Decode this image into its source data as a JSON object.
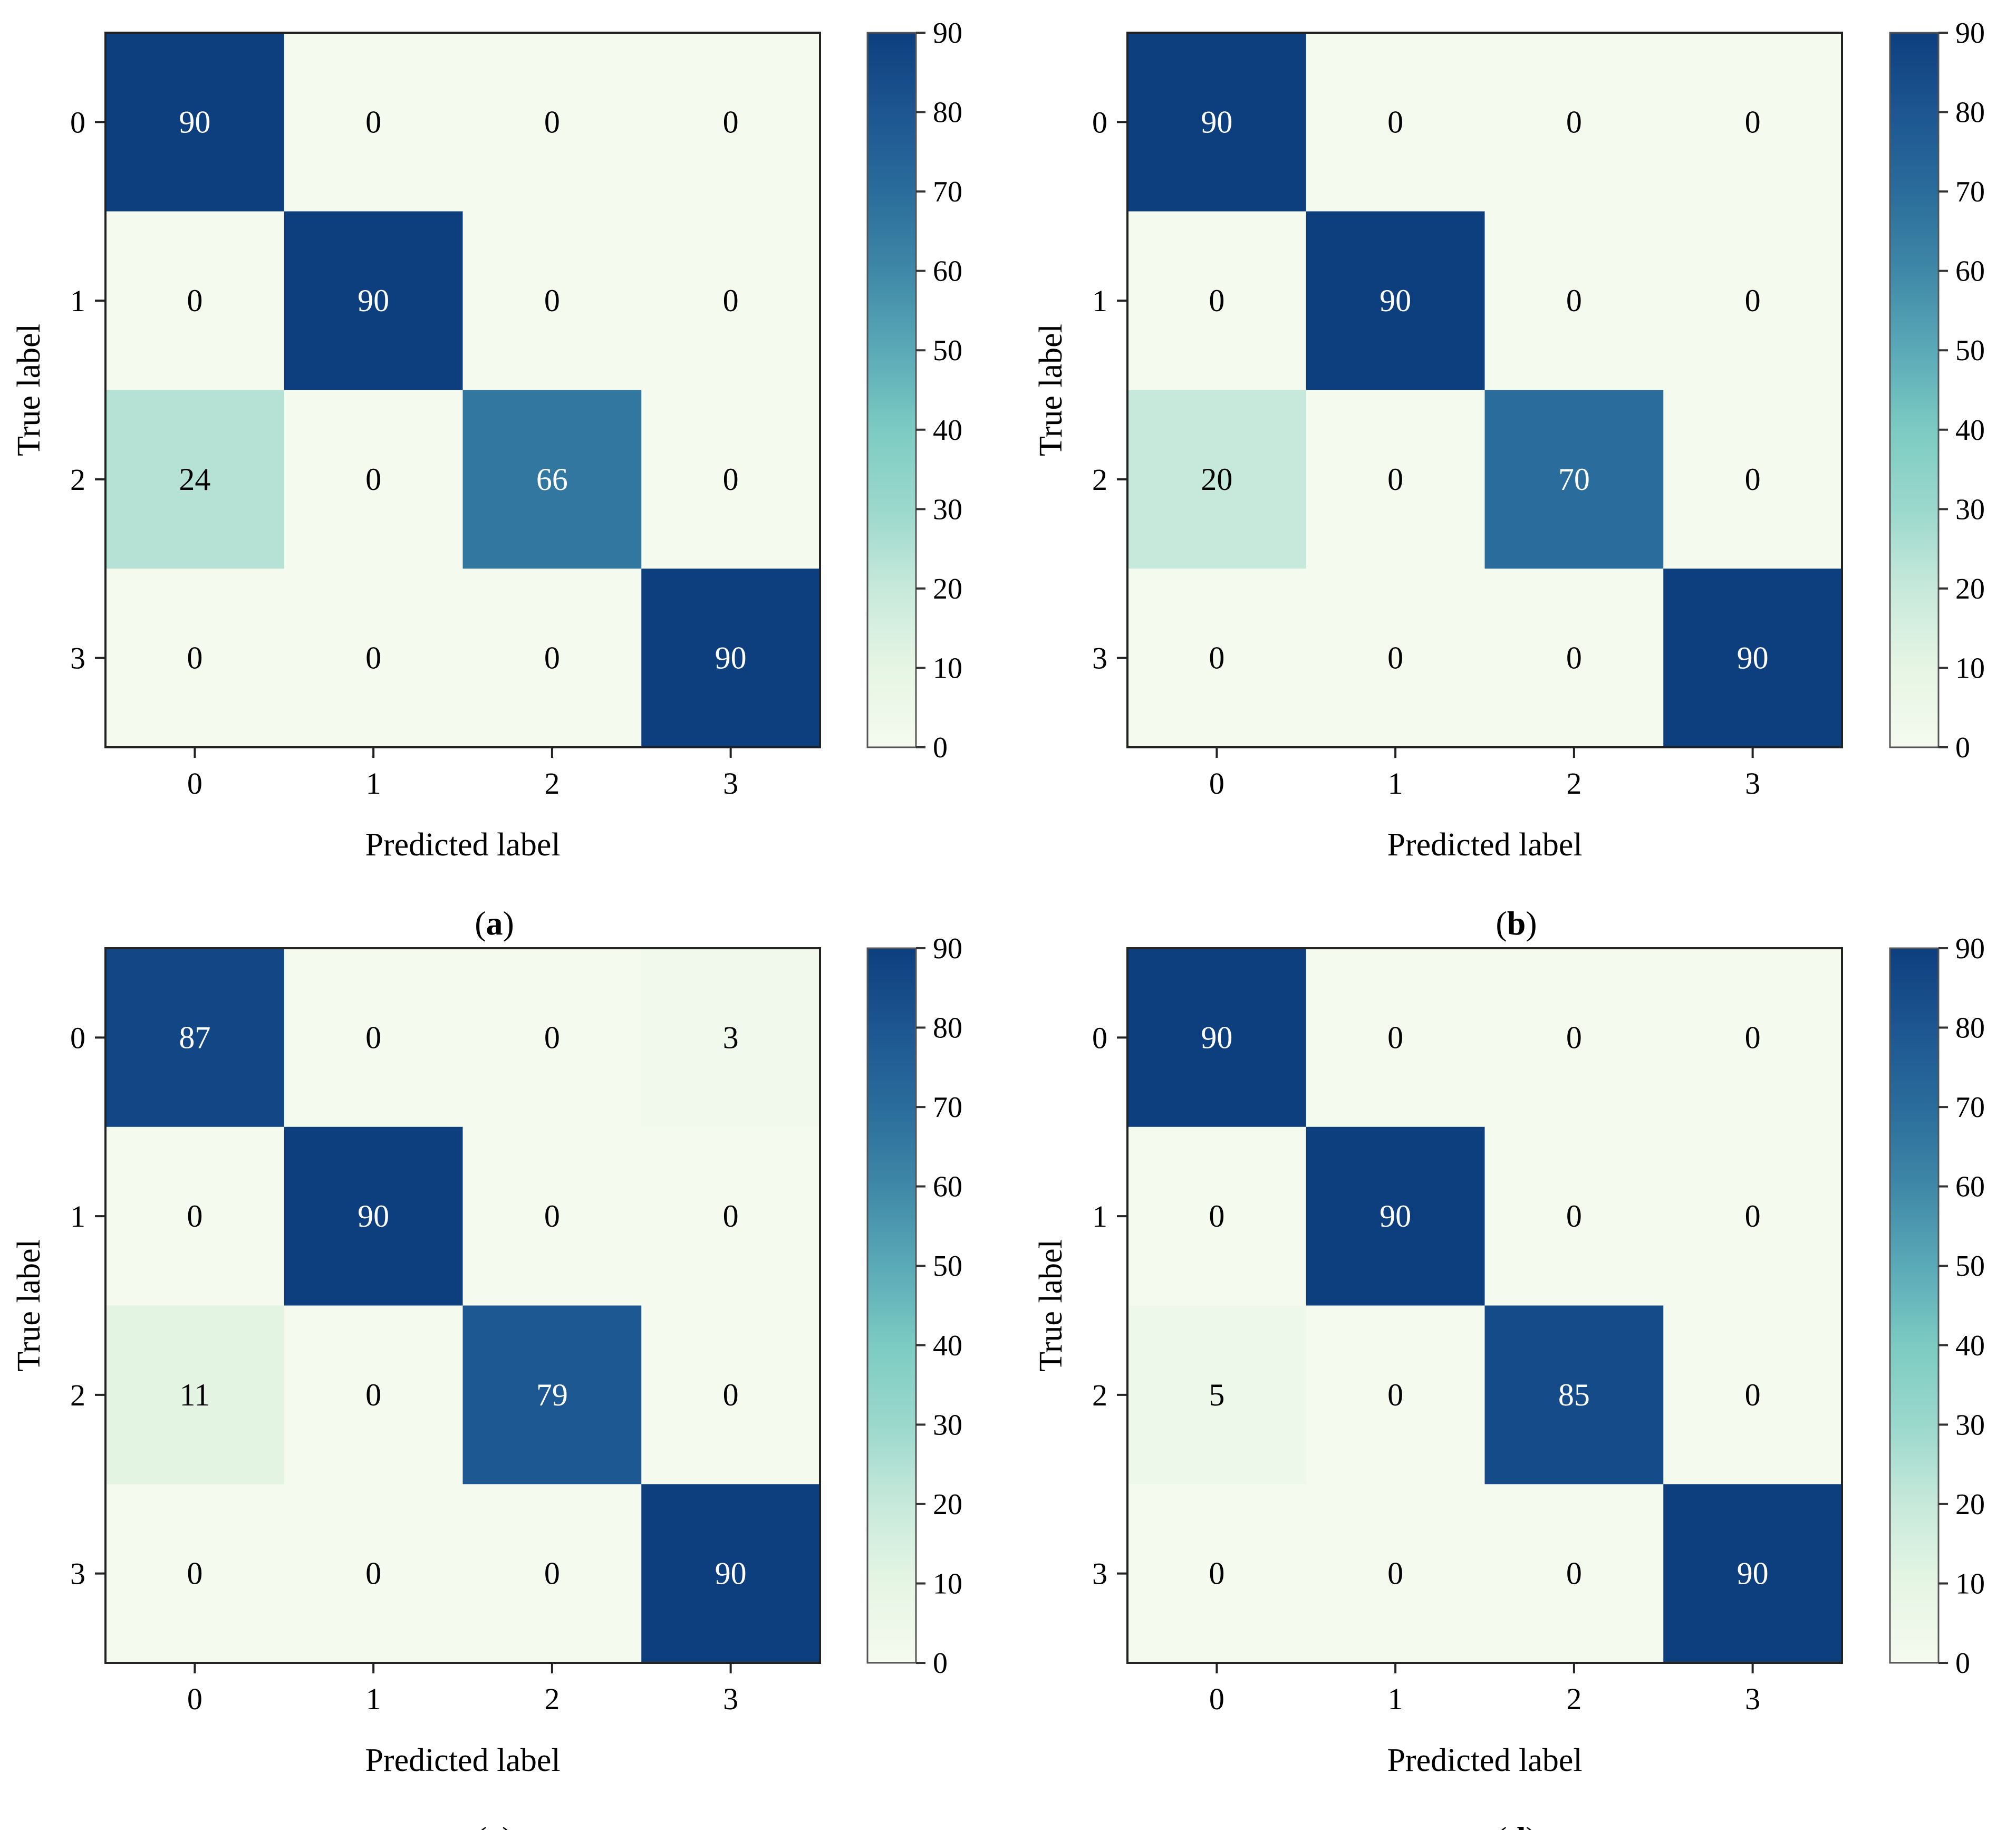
{
  "chart_data": [
    {
      "type": "heatmap",
      "panel_label": "a",
      "xlabel": "Predicted label",
      "ylabel": "True label",
      "x_tick_labels": [
        "0",
        "1",
        "2",
        "3"
      ],
      "y_tick_labels": [
        "0",
        "1",
        "2",
        "3"
      ],
      "matrix": [
        [
          90,
          0,
          0,
          0
        ],
        [
          0,
          90,
          0,
          0
        ],
        [
          24,
          0,
          66,
          0
        ],
        [
          0,
          0,
          0,
          90
        ]
      ],
      "colorbar": {
        "min": 0,
        "max": 90,
        "ticks": [
          0,
          10,
          20,
          30,
          40,
          50,
          60,
          70,
          80,
          90
        ]
      }
    },
    {
      "type": "heatmap",
      "panel_label": "b",
      "xlabel": "Predicted label",
      "ylabel": "True label",
      "x_tick_labels": [
        "0",
        "1",
        "2",
        "3"
      ],
      "y_tick_labels": [
        "0",
        "1",
        "2",
        "3"
      ],
      "matrix": [
        [
          90,
          0,
          0,
          0
        ],
        [
          0,
          90,
          0,
          0
        ],
        [
          20,
          0,
          70,
          0
        ],
        [
          0,
          0,
          0,
          90
        ]
      ],
      "colorbar": {
        "min": 0,
        "max": 90,
        "ticks": [
          0,
          10,
          20,
          30,
          40,
          50,
          60,
          70,
          80,
          90
        ]
      }
    },
    {
      "type": "heatmap",
      "panel_label": "c",
      "xlabel": "Predicted label",
      "ylabel": "True label",
      "x_tick_labels": [
        "0",
        "1",
        "2",
        "3"
      ],
      "y_tick_labels": [
        "0",
        "1",
        "2",
        "3"
      ],
      "matrix": [
        [
          87,
          0,
          0,
          3
        ],
        [
          0,
          90,
          0,
          0
        ],
        [
          11,
          0,
          79,
          0
        ],
        [
          0,
          0,
          0,
          90
        ]
      ],
      "colorbar": {
        "min": 0,
        "max": 90,
        "ticks": [
          0,
          10,
          20,
          30,
          40,
          50,
          60,
          70,
          80,
          90
        ]
      }
    },
    {
      "type": "heatmap",
      "panel_label": "d",
      "xlabel": "Predicted label",
      "ylabel": "True label",
      "x_tick_labels": [
        "0",
        "1",
        "2",
        "3"
      ],
      "y_tick_labels": [
        "0",
        "1",
        "2",
        "3"
      ],
      "matrix": [
        [
          90,
          0,
          0,
          0
        ],
        [
          0,
          90,
          0,
          0
        ],
        [
          5,
          0,
          85,
          0
        ],
        [
          0,
          0,
          0,
          90
        ]
      ],
      "colorbar": {
        "min": 0,
        "max": 90,
        "ticks": [
          0,
          10,
          20,
          30,
          40,
          50,
          60,
          70,
          80,
          90
        ]
      }
    }
  ],
  "colormap": {
    "stops": [
      "#f7fcf0",
      "#e0f3db",
      "#ccebc5",
      "#a8ddb5",
      "#7bccc4",
      "#4eb3d3",
      "#2b8cbe",
      "#0868ac",
      "#084081"
    ],
    "actual_stops": [
      "#f5faef",
      "#e6f5e4",
      "#c7e9db",
      "#9bd8cc",
      "#7ccbc2",
      "#5aa9b7",
      "#3f88a7",
      "#2a6c9b",
      "#1d5691",
      "#0d3f7e"
    ]
  },
  "cell_text_colors": {
    "light": "#ffffff",
    "dark": "#000000"
  }
}
